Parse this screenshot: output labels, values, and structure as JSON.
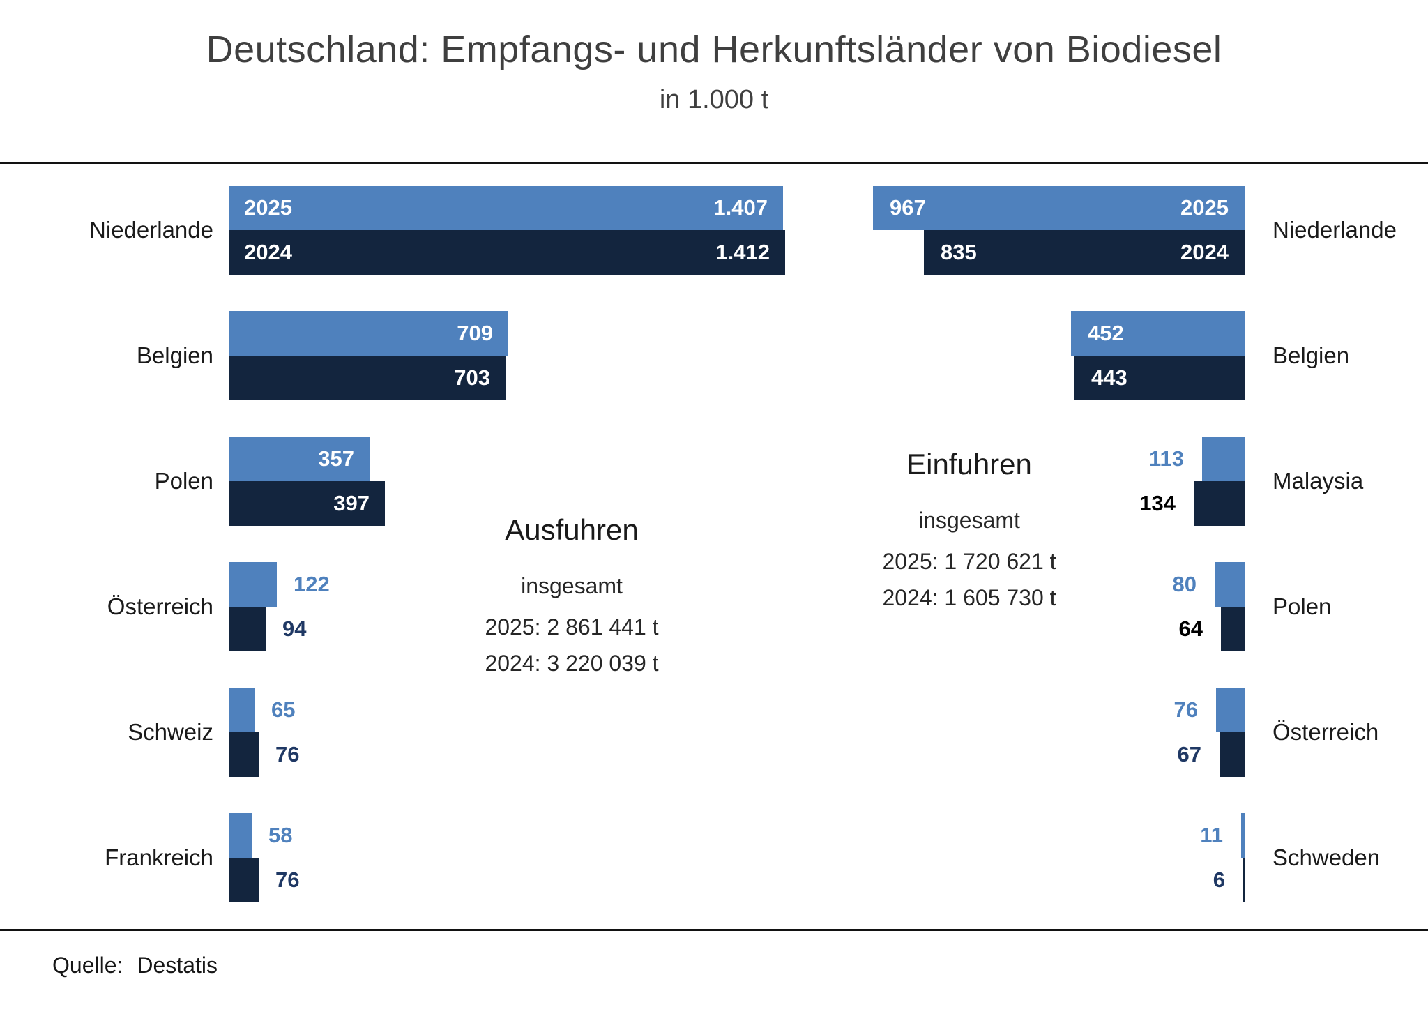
{
  "chart_data": {
    "type": "bar",
    "orientation": "horizontal",
    "title": "Deutschland: Empfangs- und Herkunftsländer von Biodiesel",
    "subtitle": "in 1.000 t",
    "years": [
      "2025",
      "2024"
    ],
    "panels": [
      {
        "id": "exports",
        "side": "left",
        "heading": "Ausfuhren",
        "subheading": "insgesamt",
        "totals": [
          "2025: 2 861 441 t",
          "2024: 3 220 039 t"
        ],
        "categories": [
          "Niederlande",
          "Belgien",
          "Polen",
          "Österreich",
          "Schweiz",
          "Frankreich"
        ],
        "series": [
          {
            "name": "2025",
            "values": [
              1407,
              709,
              357,
              122,
              65,
              58
            ],
            "labels": [
              "1.407",
              "709",
              "357",
              "122",
              "65",
              "58"
            ]
          },
          {
            "name": "2024",
            "values": [
              1412,
              703,
              397,
              94,
              76,
              76
            ],
            "labels": [
              "1.412",
              "703",
              "397",
              "94",
              "76",
              "76"
            ]
          }
        ],
        "label_2024_colors": [
          null,
          null,
          null,
          "#1F3864",
          "#1F3864",
          "#1F3864"
        ]
      },
      {
        "id": "imports",
        "side": "right",
        "heading": "Einfuhren",
        "subheading": "insgesamt",
        "totals": [
          "2025: 1 720 621 t",
          "2024: 1 605 730 t"
        ],
        "categories": [
          "Niederlande",
          "Belgien",
          "Malaysia",
          "Polen",
          "Österreich",
          "Schweden"
        ],
        "series": [
          {
            "name": "2025",
            "values": [
              967,
              452,
              113,
              80,
              76,
              11
            ],
            "labels": [
              "967",
              "452",
              "113",
              "80",
              "76",
              "11"
            ]
          },
          {
            "name": "2024",
            "values": [
              835,
              443,
              134,
              64,
              67,
              6
            ],
            "labels": [
              "835",
              "443",
              "134",
              "64",
              "67",
              "6"
            ]
          }
        ],
        "label_2024_colors": [
          null,
          null,
          "#000000",
          "#000000",
          "#1F3864",
          "#1F3864"
        ]
      }
    ]
  },
  "colors": {
    "bar_2025": "#4F81BD",
    "bar_2024": "#13253E",
    "label_2025": "#4F81BD",
    "label_2024": "#1F3864",
    "inside_label": "#FFFFFF"
  },
  "source": {
    "label": "Quelle:",
    "value": "Destatis"
  }
}
